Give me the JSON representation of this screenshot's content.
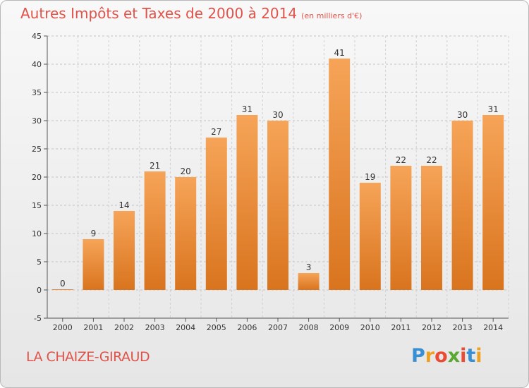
{
  "header": {
    "title": "Autres Impôts et Taxes de 2000 à 2014",
    "subtitle": "(en milliers d'€)"
  },
  "footer": {
    "commune": "LA CHAIZE-GIRAUD",
    "logo": {
      "text": "Proxiti",
      "letters": [
        "P",
        "r",
        "o",
        "x",
        "i",
        "t",
        "i"
      ],
      "colors": [
        "#3a8fd4",
        "#f0a020",
        "#e94b35",
        "#5aa832",
        "#e94b35",
        "#3a8fd4",
        "#f0a020"
      ]
    }
  },
  "chart_data": {
    "type": "bar",
    "title": "Autres Impôts et Taxes de 2000 à 2014",
    "subtitle": "(en milliers d'€)",
    "categories": [
      "2000",
      "2001",
      "2002",
      "2003",
      "2004",
      "2005",
      "2006",
      "2007",
      "2008",
      "2009",
      "2010",
      "2011",
      "2012",
      "2013",
      "2014"
    ],
    "values": [
      0,
      9,
      14,
      21,
      20,
      27,
      31,
      30,
      3,
      41,
      19,
      22,
      22,
      30,
      31
    ],
    "data_labels": [
      "0",
      "9",
      "14",
      "21",
      "20",
      "27",
      "31",
      "30",
      "3",
      "41",
      "19",
      "22",
      "22",
      "30",
      "31"
    ],
    "ylim": [
      -5,
      45
    ],
    "yticks": [
      -5,
      0,
      5,
      10,
      15,
      20,
      25,
      30,
      35,
      40,
      45
    ],
    "ytick_labels": [
      "-5",
      "0",
      "5",
      "10",
      "15",
      "20",
      "25",
      "30",
      "35",
      "40",
      "45"
    ],
    "grid": "horizontal-dashed",
    "bar_color_top": "#f6a458",
    "bar_color_bottom": "#d9741e",
    "xlabel": "",
    "ylabel": ""
  }
}
